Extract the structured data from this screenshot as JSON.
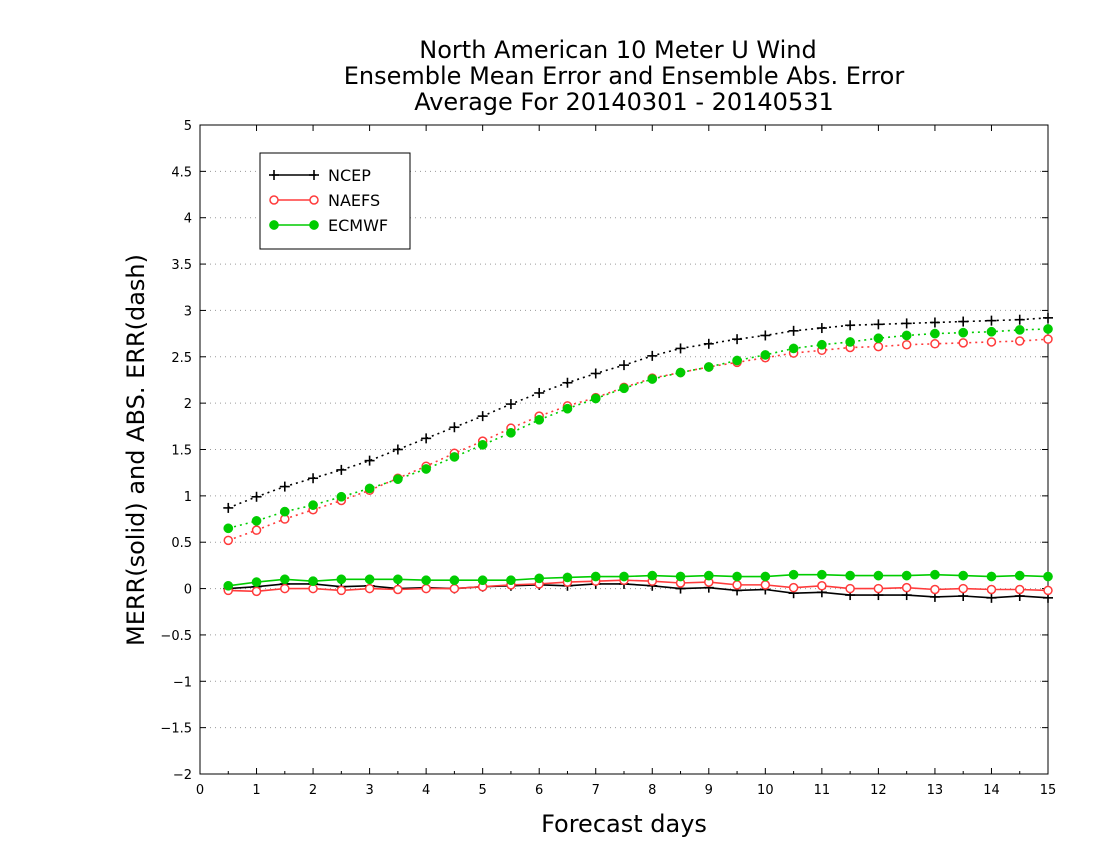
{
  "chart_data": {
    "type": "line",
    "title": [
      "North American 10 Meter U Wind",
      "Ensemble Mean Error and Ensemble Abs. Error",
      "Average For 20140301 - 20140531"
    ],
    "xlabel": "Forecast days",
    "ylabel": "MERR(solid) and ABS. ERR(dash)",
    "xlim": [
      0,
      15
    ],
    "ylim": [
      -2,
      5
    ],
    "x_ticks": [
      "0",
      "1",
      "2",
      "3",
      "4",
      "5",
      "6",
      "7",
      "8",
      "9",
      "10",
      "11",
      "12",
      "13",
      "14",
      "15"
    ],
    "y_ticks": [
      "−2",
      "−1.5",
      "−1",
      "−0.5",
      "0",
      "0.5",
      "1",
      "1.5",
      "2",
      "2.5",
      "3",
      "3.5",
      "4",
      "4.5",
      "5"
    ],
    "grid": true,
    "legend_position": "top-left",
    "x": [
      0.5,
      1,
      1.5,
      2,
      2.5,
      3,
      3.5,
      4,
      4.5,
      5,
      5.5,
      6,
      6.5,
      7,
      7.5,
      8,
      8.5,
      9,
      9.5,
      10,
      10.5,
      11,
      11.5,
      12,
      12.5,
      13,
      13.5,
      14,
      14.5,
      15
    ],
    "series": [
      {
        "name": "NCEP",
        "color": "#000000",
        "marker": "plus",
        "merr_solid": [
          0.0,
          0.02,
          0.05,
          0.05,
          0.02,
          0.03,
          0.0,
          0.01,
          0.0,
          0.02,
          0.03,
          0.04,
          0.03,
          0.05,
          0.05,
          0.03,
          0.0,
          0.01,
          -0.02,
          -0.01,
          -0.05,
          -0.04,
          -0.07,
          -0.07,
          -0.07,
          -0.09,
          -0.08,
          -0.1,
          -0.08,
          -0.1
        ],
        "abs_err_dash": [
          0.87,
          0.99,
          1.1,
          1.19,
          1.28,
          1.38,
          1.5,
          1.62,
          1.74,
          1.86,
          1.99,
          2.11,
          2.22,
          2.32,
          2.41,
          2.51,
          2.59,
          2.64,
          2.69,
          2.73,
          2.78,
          2.81,
          2.84,
          2.85,
          2.86,
          2.87,
          2.88,
          2.89,
          2.9,
          2.92
        ]
      },
      {
        "name": "NAEFS",
        "color": "#ff3b3b",
        "marker": "open-circle",
        "merr_solid": [
          -0.02,
          -0.03,
          0.0,
          0.0,
          -0.02,
          0.0,
          -0.01,
          0.0,
          0.0,
          0.02,
          0.04,
          0.05,
          0.07,
          0.08,
          0.09,
          0.08,
          0.06,
          0.07,
          0.04,
          0.04,
          0.01,
          0.03,
          0.0,
          0.0,
          0.01,
          -0.01,
          0.0,
          -0.01,
          -0.01,
          -0.02
        ],
        "abs_err_dash": [
          0.52,
          0.63,
          0.75,
          0.85,
          0.95,
          1.06,
          1.19,
          1.32,
          1.46,
          1.59,
          1.73,
          1.86,
          1.97,
          2.06,
          2.17,
          2.27,
          2.33,
          2.39,
          2.44,
          2.49,
          2.54,
          2.57,
          2.6,
          2.61,
          2.63,
          2.64,
          2.65,
          2.66,
          2.67,
          2.69
        ]
      },
      {
        "name": "ECMWF",
        "color": "#00cc00",
        "marker": "filled-circle",
        "merr_solid": [
          0.03,
          0.07,
          0.1,
          0.08,
          0.1,
          0.1,
          0.1,
          0.09,
          0.09,
          0.09,
          0.09,
          0.11,
          0.12,
          0.13,
          0.13,
          0.14,
          0.13,
          0.14,
          0.13,
          0.13,
          0.15,
          0.15,
          0.14,
          0.14,
          0.14,
          0.15,
          0.14,
          0.13,
          0.14,
          0.13
        ],
        "abs_err_dash": [
          0.65,
          0.73,
          0.83,
          0.9,
          0.99,
          1.08,
          1.18,
          1.29,
          1.42,
          1.55,
          1.68,
          1.82,
          1.94,
          2.05,
          2.16,
          2.26,
          2.33,
          2.39,
          2.46,
          2.52,
          2.59,
          2.63,
          2.66,
          2.7,
          2.73,
          2.75,
          2.76,
          2.77,
          2.79,
          2.8
        ]
      }
    ]
  }
}
